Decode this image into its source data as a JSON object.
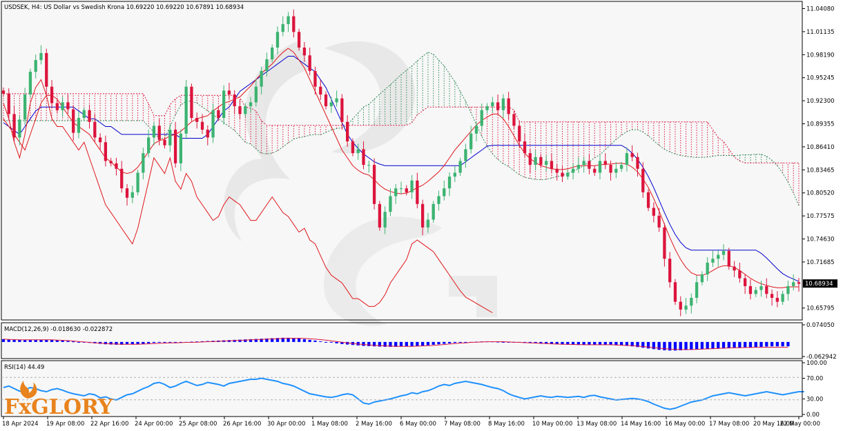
{
  "header": {
    "title": "USDSEK, H4:  US Dollar vs Swedish Krona  10.69220 10.69220 10.67891 10.68934"
  },
  "colors": {
    "bull": "#3cb371",
    "bear": "#dc143c",
    "kijun": "#0000cd",
    "tenkan": "#e0151a",
    "chikou": "#e0151a",
    "cloud_bull": "#2e8b57",
    "cloud_bear": "#dc143c",
    "macd_hist": "#0000ff",
    "macd_signal": "#dc143c",
    "rsi": "#1e90ff",
    "logo_orange": "#e8831d"
  },
  "price_panel": {
    "y_labels": [
      "11.04080",
      "11.01135",
      "10.98190",
      "10.95245",
      "10.92300",
      "10.89355",
      "10.86410",
      "10.83465",
      "10.80520",
      "10.77575",
      "10.74630",
      "10.71685",
      "10.68934",
      "10.65795"
    ],
    "current_price": "10.68934"
  },
  "macd_panel": {
    "label": "MACD(12,26,9) -0.018630 -0.022872",
    "y_labels": [
      "0.074050",
      "-0.062942"
    ]
  },
  "rsi_panel": {
    "label": "RSI(14) 44.49",
    "y_labels": [
      "100.00",
      "70.00",
      "30.00",
      "0.00"
    ]
  },
  "x_labels": [
    "18 Apr 2024",
    "19 Apr 08:00",
    "22 Apr 16:00",
    "24 Apr 00:00",
    "25 Apr 08:00",
    "26 Apr 16:00",
    "30 Apr 00:00",
    "1 May 08:00",
    "2 May 16:00",
    "6 May 00:00",
    "7 May 08:00",
    "8 May 16:00",
    "10 May 00:00",
    "13 May 08:00",
    "14 May 16:00",
    "16 May 00:00",
    "17 May 08:00",
    "20 May 16:00",
    "22 May 00:00"
  ],
  "logo": {
    "text": "FxGLORY"
  },
  "chart_data": [
    {
      "type": "candlestick",
      "title": "USDSEK, H4:  US Dollar vs Swedish Krona",
      "x_start": "18 Apr 2024",
      "x_end": "22 May 00:00",
      "ylim": [
        10.648,
        11.043
      ],
      "last": {
        "open": 10.6922,
        "high": 10.6922,
        "low": 10.67891,
        "close": 10.68934
      },
      "close": [
        10.932,
        10.906,
        10.876,
        10.899,
        10.931,
        10.96,
        10.975,
        10.984,
        10.941,
        10.92,
        10.911,
        10.921,
        10.912,
        10.882,
        10.901,
        10.911,
        10.896,
        10.876,
        10.87,
        10.846,
        10.843,
        10.836,
        10.811,
        10.799,
        10.806,
        10.831,
        10.856,
        10.876,
        10.891,
        10.873,
        10.866,
        10.886,
        10.843,
        10.881,
        10.941,
        10.901,
        10.896,
        10.886,
        10.876,
        10.911,
        10.901,
        10.936,
        10.931,
        10.916,
        10.906,
        10.916,
        10.921,
        10.941,
        10.961,
        10.976,
        10.991,
        11.011,
        11.021,
        11.031,
        11.011,
        10.991,
        10.981,
        10.961,
        10.941,
        10.931,
        10.916,
        10.921,
        10.926,
        10.896,
        10.871,
        10.856,
        10.861,
        10.841,
        10.841,
        10.791,
        10.761,
        10.781,
        10.801,
        10.811,
        10.811,
        10.806,
        10.821,
        10.791,
        10.761,
        10.771,
        10.791,
        10.801,
        10.811,
        10.826,
        10.831,
        10.846,
        10.861,
        10.881,
        10.891,
        10.911,
        10.916,
        10.921,
        10.911,
        10.926,
        10.906,
        10.891,
        10.871,
        10.856,
        10.841,
        10.851,
        10.841,
        10.846,
        10.836,
        10.831,
        10.826,
        10.831,
        10.836,
        10.841,
        10.846,
        10.836,
        10.831,
        10.846,
        10.841,
        10.831,
        10.836,
        10.841,
        10.856,
        10.851,
        10.836,
        10.806,
        10.786,
        10.776,
        10.761,
        10.721,
        10.691,
        10.666,
        10.656,
        10.661,
        10.671,
        10.691,
        10.701,
        10.716,
        10.721,
        10.726,
        10.731,
        10.711,
        10.706,
        10.696,
        10.686,
        10.676,
        10.681,
        10.686,
        10.676,
        10.671,
        10.666,
        10.676,
        10.686,
        10.691,
        10.689
      ],
      "tenkan": [
        10.9,
        10.89,
        10.88,
        10.87,
        10.86,
        10.88,
        10.9,
        10.92,
        10.93,
        10.93,
        10.925,
        10.915,
        10.905,
        10.895,
        10.89,
        10.885,
        10.88,
        10.87,
        10.86,
        10.85,
        10.845,
        10.838,
        10.832,
        10.83,
        10.832,
        10.838,
        10.848,
        10.858,
        10.868,
        10.872,
        10.874,
        10.878,
        10.88,
        10.884,
        10.89,
        10.896,
        10.9,
        10.902,
        10.904,
        10.91,
        10.915,
        10.92,
        10.922,
        10.925,
        10.928,
        10.935,
        10.942,
        10.95,
        10.958,
        10.964,
        10.97,
        10.978,
        10.985,
        10.99,
        10.985,
        10.975,
        10.965,
        10.95,
        10.935,
        10.92,
        10.905,
        10.89,
        10.875,
        10.86,
        10.85,
        10.84,
        10.834,
        10.83,
        10.828,
        10.822,
        10.815,
        10.81,
        10.807,
        10.805,
        10.804,
        10.805,
        10.808,
        10.812,
        10.815,
        10.82,
        10.826,
        10.832,
        10.84,
        10.85,
        10.86,
        10.868,
        10.876,
        10.884,
        10.892,
        10.898,
        10.902,
        10.906,
        10.906,
        10.9,
        10.89,
        10.878,
        10.866,
        10.856,
        10.849,
        10.844,
        10.84,
        10.838,
        10.836,
        10.835,
        10.835,
        10.836,
        10.838,
        10.84,
        10.84,
        10.84,
        10.84,
        10.841,
        10.842,
        10.842,
        10.843,
        10.843,
        10.842,
        10.838,
        10.832,
        10.823,
        10.812,
        10.798,
        10.782,
        10.765,
        10.748,
        10.733,
        10.72,
        10.71,
        10.703,
        10.7,
        10.7,
        10.702,
        10.706,
        10.71,
        10.712,
        10.712,
        10.71,
        10.706,
        10.701,
        10.696,
        10.692,
        10.689,
        10.687,
        10.685,
        10.684,
        10.684,
        10.685,
        10.685,
        10.685
      ],
      "kijun": [
        10.895,
        10.89,
        10.885,
        10.88,
        10.89,
        10.9,
        10.91,
        10.915,
        10.915,
        10.915,
        10.915,
        10.915,
        10.915,
        10.915,
        10.91,
        10.905,
        10.9,
        10.9,
        10.895,
        10.89,
        10.89,
        10.885,
        10.88,
        10.88,
        10.88,
        10.88,
        10.88,
        10.88,
        10.88,
        10.88,
        10.88,
        10.88,
        10.88,
        10.875,
        10.875,
        10.875,
        10.875,
        10.875,
        10.88,
        10.89,
        10.9,
        10.91,
        10.915,
        10.925,
        10.935,
        10.94,
        10.945,
        10.95,
        10.955,
        10.96,
        10.965,
        10.97,
        10.975,
        10.98,
        10.98,
        10.975,
        10.97,
        10.965,
        10.96,
        10.95,
        10.94,
        10.925,
        10.91,
        10.895,
        10.88,
        10.87,
        10.862,
        10.855,
        10.85,
        10.845,
        10.842,
        10.84,
        10.84,
        10.84,
        10.84,
        10.84,
        10.84,
        10.84,
        10.84,
        10.84,
        10.84,
        10.84,
        10.84,
        10.84,
        10.84,
        10.84,
        10.845,
        10.85,
        10.855,
        10.86,
        10.865,
        10.866,
        10.866,
        10.866,
        10.866,
        10.866,
        10.866,
        10.866,
        10.866,
        10.866,
        10.866,
        10.866,
        10.866,
        10.866,
        10.866,
        10.866,
        10.866,
        10.866,
        10.866,
        10.866,
        10.866,
        10.866,
        10.866,
        10.866,
        10.866,
        10.866,
        10.862,
        10.856,
        10.848,
        10.838,
        10.826,
        10.812,
        10.796,
        10.78,
        10.765,
        10.752,
        10.742,
        10.735,
        10.732,
        10.732,
        10.732,
        10.732,
        10.732,
        10.732,
        10.732,
        10.732,
        10.732,
        10.732,
        10.732,
        10.732,
        10.732,
        10.728,
        10.722,
        10.715,
        10.708,
        10.702,
        10.698,
        10.695,
        10.692
      ],
      "chikou": [
        10.92,
        10.9,
        10.87,
        10.85,
        10.88,
        10.92,
        10.94,
        10.95,
        10.93,
        10.9,
        10.89,
        10.89,
        10.88,
        10.87,
        10.86,
        10.87,
        10.85,
        10.83,
        10.81,
        10.79,
        10.78,
        10.77,
        10.76,
        10.75,
        10.74,
        10.76,
        10.79,
        10.82,
        10.85,
        10.84,
        10.83,
        10.85,
        10.82,
        10.81,
        10.83,
        10.82,
        10.8,
        10.79,
        10.78,
        10.77,
        10.775,
        10.79,
        10.8,
        10.795,
        10.79,
        10.78,
        10.77,
        10.77,
        10.78,
        10.79,
        10.8,
        10.79,
        10.78,
        10.775,
        10.765,
        10.755,
        10.76,
        10.745,
        10.74,
        10.725,
        10.71,
        10.7,
        10.695,
        10.69,
        10.68,
        10.67,
        10.67,
        10.665,
        10.66,
        10.66,
        10.665,
        10.675,
        10.69,
        10.7,
        10.71,
        10.72,
        10.74,
        10.745,
        10.74,
        10.735,
        10.73,
        10.72,
        10.71,
        10.7,
        10.69,
        10.68,
        10.672,
        10.668,
        10.664,
        10.66,
        10.656,
        10.652
      ]
    },
    {
      "type": "bar",
      "title": "MACD(12,26,9)",
      "last_values": {
        "macd": -0.01863,
        "signal": -0.022872
      },
      "ylim": [
        -0.062942,
        0.07405
      ],
      "values": [
        0.012,
        0.011,
        0.01,
        0.009,
        0.008,
        0.008,
        0.009,
        0.01,
        0.01,
        0.009,
        0.008,
        0.006,
        0.004,
        0.002,
        0.0,
        -0.002,
        -0.004,
        -0.006,
        -0.008,
        -0.01,
        -0.011,
        -0.012,
        -0.012,
        -0.011,
        -0.01,
        -0.009,
        -0.008,
        -0.006,
        -0.004,
        -0.003,
        -0.002,
        -0.002,
        -0.002,
        -0.001,
        0.0,
        0.001,
        0.002,
        0.003,
        0.004,
        0.005,
        0.006,
        0.007,
        0.008,
        0.009,
        0.01,
        0.011,
        0.012,
        0.013,
        0.014,
        0.015,
        0.016,
        0.017,
        0.018,
        0.018,
        0.017,
        0.015,
        0.012,
        0.009,
        0.006,
        0.003,
        0.0,
        -0.003,
        -0.006,
        -0.009,
        -0.011,
        -0.013,
        -0.015,
        -0.017,
        -0.018,
        -0.019,
        -0.02,
        -0.021,
        -0.021,
        -0.021,
        -0.02,
        -0.019,
        -0.018,
        -0.017,
        -0.016,
        -0.014,
        -0.012,
        -0.01,
        -0.008,
        -0.006,
        -0.004,
        -0.002,
        -0.001,
        0.0,
        0.001,
        0.002,
        0.002,
        0.002,
        0.001,
        0.0,
        -0.001,
        -0.002,
        -0.003,
        -0.004,
        -0.005,
        -0.006,
        -0.007,
        -0.008,
        -0.009,
        -0.01,
        -0.011,
        -0.012,
        -0.012,
        -0.013,
        -0.013,
        -0.013,
        -0.013,
        -0.013,
        -0.013,
        -0.013,
        -0.014,
        -0.015,
        -0.017,
        -0.019,
        -0.022,
        -0.025,
        -0.028,
        -0.031,
        -0.034,
        -0.036,
        -0.037,
        -0.037,
        -0.036,
        -0.035,
        -0.034,
        -0.033,
        -0.032,
        -0.031,
        -0.03,
        -0.029,
        -0.028,
        -0.027,
        -0.026,
        -0.025,
        -0.024,
        -0.023,
        -0.022,
        -0.021,
        -0.02,
        -0.019,
        -0.019,
        -0.019,
        -0.019
      ],
      "signal": [
        0.012,
        0.011,
        0.01,
        0.009,
        0.009,
        0.009,
        0.009,
        0.009,
        0.009,
        0.009,
        0.008,
        0.007,
        0.006,
        0.004,
        0.002,
        0.0,
        -0.002,
        -0.004,
        -0.005,
        -0.007,
        -0.008,
        -0.009,
        -0.01,
        -0.01,
        -0.01,
        -0.01,
        -0.009,
        -0.008,
        -0.007,
        -0.006,
        -0.005,
        -0.004,
        -0.004,
        -0.003,
        -0.002,
        -0.002,
        -0.001,
        0.0,
        0.001,
        0.002,
        0.003,
        0.004,
        0.005,
        0.006,
        0.007,
        0.008,
        0.009,
        0.01,
        0.011,
        0.012,
        0.013,
        0.014,
        0.015,
        0.016,
        0.016,
        0.016,
        0.015,
        0.014,
        0.012,
        0.01,
        0.008,
        0.005,
        0.002,
        -0.001,
        -0.004,
        -0.007,
        -0.009,
        -0.011,
        -0.013,
        -0.015,
        -0.016,
        -0.017,
        -0.018,
        -0.019,
        -0.019,
        -0.019,
        -0.019,
        -0.018,
        -0.017,
        -0.016,
        -0.015,
        -0.013,
        -0.011,
        -0.009,
        -0.007,
        -0.005,
        -0.004,
        -0.002,
        -0.001,
        0.0,
        0.001,
        0.001,
        0.001,
        0.001,
        0.0,
        -0.001,
        -0.002,
        -0.003,
        -0.004,
        -0.005,
        -0.006,
        -0.007,
        -0.008,
        -0.009,
        -0.01,
        -0.01,
        -0.011,
        -0.011,
        -0.012,
        -0.012,
        -0.012,
        -0.012,
        -0.012,
        -0.012,
        -0.013,
        -0.014,
        -0.015,
        -0.016,
        -0.018,
        -0.02,
        -0.022,
        -0.025,
        -0.027,
        -0.029,
        -0.031,
        -0.032,
        -0.033,
        -0.033,
        -0.033,
        -0.032,
        -0.031,
        -0.03,
        -0.029,
        -0.028,
        -0.027,
        -0.026,
        -0.025,
        -0.025,
        -0.024,
        -0.024,
        -0.023,
        -0.023,
        -0.023,
        -0.023,
        -0.023,
        -0.023,
        -0.023
      ]
    },
    {
      "type": "line",
      "title": "RSI(14)",
      "last_value": 44.49,
      "ylim": [
        0,
        100
      ],
      "levels": [
        70,
        30
      ],
      "values": [
        52,
        55,
        50,
        45,
        48,
        52,
        50,
        46,
        44,
        48,
        50,
        47,
        43,
        40,
        38,
        36,
        40,
        38,
        32,
        34,
        30,
        28,
        33,
        38,
        40,
        45,
        50,
        54,
        60,
        62,
        58,
        52,
        55,
        60,
        64,
        60,
        56,
        58,
        62,
        60,
        58,
        55,
        60,
        62,
        64,
        66,
        68,
        68,
        70,
        68,
        66,
        64,
        60,
        58,
        55,
        50,
        45,
        40,
        38,
        36,
        34,
        33,
        35,
        38,
        40,
        38,
        30,
        22,
        20,
        24,
        26,
        28,
        30,
        33,
        36,
        38,
        42,
        40,
        44,
        46,
        50,
        55,
        58,
        56,
        60,
        62,
        64,
        62,
        60,
        58,
        55,
        52,
        50,
        46,
        40,
        36,
        33,
        30,
        32,
        34,
        36,
        34,
        33,
        35,
        34,
        33,
        34,
        35,
        33,
        36,
        37,
        34,
        32,
        30,
        28,
        29,
        30,
        31,
        30,
        28,
        25,
        20,
        16,
        12,
        10,
        12,
        16,
        20,
        24,
        26,
        28,
        32,
        36,
        38,
        40,
        42,
        40,
        38,
        36,
        38,
        40,
        42,
        44,
        42,
        40,
        38,
        40,
        42,
        44,
        44
      ]
    }
  ]
}
